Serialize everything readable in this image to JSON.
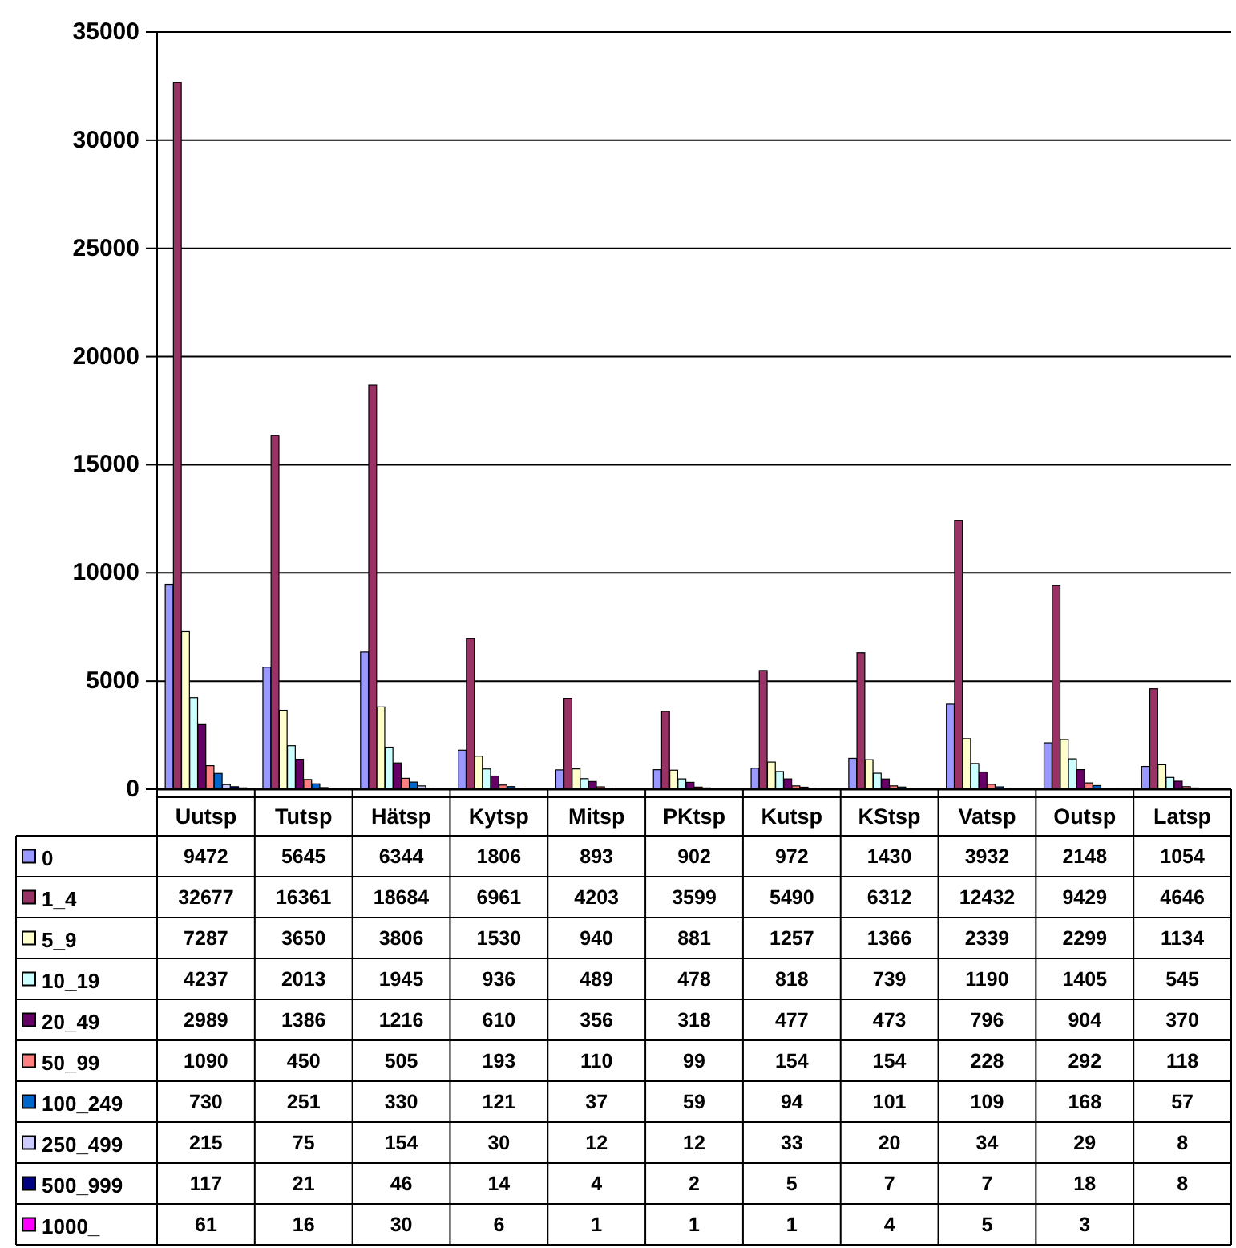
{
  "chart_data": {
    "type": "bar",
    "categories": [
      "Uutsp",
      "Tutsp",
      "Hätsp",
      "Kytsp",
      "Mitsp",
      "PKtsp",
      "Kutsp",
      "KStsp",
      "Vatsp",
      "Outsp",
      "Latsp"
    ],
    "series": [
      {
        "name": "0",
        "color": "#9999ff",
        "values": [
          9472,
          5645,
          6344,
          1806,
          893,
          902,
          972,
          1430,
          3932,
          2148,
          1054
        ]
      },
      {
        "name": "1_4",
        "color": "#993366",
        "values": [
          32677,
          16361,
          18684,
          6961,
          4203,
          3599,
          5490,
          6312,
          12432,
          9429,
          4646
        ]
      },
      {
        "name": "5_9",
        "color": "#ffffcc",
        "values": [
          7287,
          3650,
          3806,
          1530,
          940,
          881,
          1257,
          1366,
          2339,
          2299,
          1134
        ]
      },
      {
        "name": "10_19",
        "color": "#ccffff",
        "values": [
          4237,
          2013,
          1945,
          936,
          489,
          478,
          818,
          739,
          1190,
          1405,
          545
        ]
      },
      {
        "name": "20_49",
        "color": "#660066",
        "values": [
          2989,
          1386,
          1216,
          610,
          356,
          318,
          477,
          473,
          796,
          904,
          370
        ]
      },
      {
        "name": "50_99",
        "color": "#ff8080",
        "values": [
          1090,
          450,
          505,
          193,
          110,
          99,
          154,
          154,
          228,
          292,
          118
        ]
      },
      {
        "name": "100_249",
        "color": "#0066cc",
        "values": [
          730,
          251,
          330,
          121,
          37,
          59,
          94,
          101,
          109,
          168,
          57
        ]
      },
      {
        "name": "250_499",
        "color": "#ccccff",
        "values": [
          215,
          75,
          154,
          30,
          12,
          12,
          33,
          20,
          34,
          29,
          8
        ]
      },
      {
        "name": "500_999",
        "color": "#000080",
        "values": [
          117,
          21,
          46,
          14,
          4,
          2,
          5,
          7,
          7,
          18,
          8
        ]
      },
      {
        "name": "1000_",
        "color": "#ff00ff",
        "values": [
          61,
          16,
          30,
          6,
          1,
          1,
          1,
          4,
          5,
          3,
          null
        ]
      }
    ],
    "ylim": [
      0,
      35000
    ],
    "yticks": [
      0,
      5000,
      10000,
      15000,
      20000,
      25000,
      30000,
      35000
    ],
    "grid": "y",
    "legend": "bottom",
    "data_labels": true
  }
}
